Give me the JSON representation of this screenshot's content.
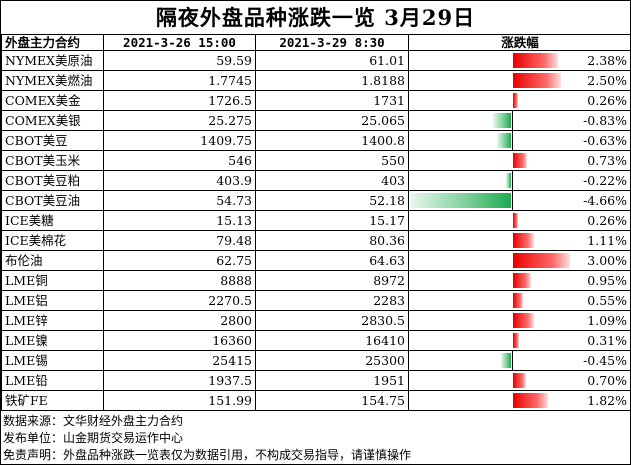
{
  "title": "隔夜外盘品种涨跌一览 3月29日",
  "columns": [
    "外盘主力合约",
    "2021-3-26 15:00",
    "2021-3-29 8:30",
    "涨跌幅"
  ],
  "colors": {
    "up": "#e80000",
    "down": "#1daa4f"
  },
  "rows": [
    {
      "name": "NYMEX美原油",
      "prev": "59.59",
      "curr": "61.01",
      "chg": "2.38%",
      "pct": 2.38
    },
    {
      "name": "NYMEX美燃油",
      "prev": "1.7745",
      "curr": "1.8188",
      "chg": "2.50%",
      "pct": 2.5
    },
    {
      "name": "COMEX美金",
      "prev": "1726.5",
      "curr": "1731",
      "chg": "0.26%",
      "pct": 0.26
    },
    {
      "name": "COMEX美银",
      "prev": "25.275",
      "curr": "25.065",
      "chg": "-0.83%",
      "pct": -0.83
    },
    {
      "name": "CBOT美豆",
      "prev": "1409.75",
      "curr": "1400.8",
      "chg": "-0.63%",
      "pct": -0.63
    },
    {
      "name": "CBOT美玉米",
      "prev": "546",
      "curr": "550",
      "chg": "0.73%",
      "pct": 0.73
    },
    {
      "name": "CBOT美豆粕",
      "prev": "403.9",
      "curr": "403",
      "chg": "-0.22%",
      "pct": -0.22
    },
    {
      "name": "CBOT美豆油",
      "prev": "54.73",
      "curr": "52.18",
      "chg": "-4.66%",
      "pct": -4.66
    },
    {
      "name": "ICE美糖",
      "prev": "15.13",
      "curr": "15.17",
      "chg": "0.26%",
      "pct": 0.26
    },
    {
      "name": "ICE美棉花",
      "prev": "79.48",
      "curr": "80.36",
      "chg": "1.11%",
      "pct": 1.11
    },
    {
      "name": "布伦油",
      "prev": "62.75",
      "curr": "64.63",
      "chg": "3.00%",
      "pct": 3.0
    },
    {
      "name": "LME铜",
      "prev": "8888",
      "curr": "8972",
      "chg": "0.95%",
      "pct": 0.95
    },
    {
      "name": "LME铝",
      "prev": "2270.5",
      "curr": "2283",
      "chg": "0.55%",
      "pct": 0.55
    },
    {
      "name": "LME锌",
      "prev": "2800",
      "curr": "2830.5",
      "chg": "1.09%",
      "pct": 1.09
    },
    {
      "name": "LME镍",
      "prev": "16360",
      "curr": "16410",
      "chg": "0.31%",
      "pct": 0.31
    },
    {
      "name": "LME锡",
      "prev": "25415",
      "curr": "25300",
      "chg": "-0.45%",
      "pct": -0.45
    },
    {
      "name": "LME铅",
      "prev": "1937.5",
      "curr": "1951",
      "chg": "0.70%",
      "pct": 0.7
    },
    {
      "name": "铁矿FE",
      "prev": "151.99",
      "curr": "154.75",
      "chg": "1.82%",
      "pct": 1.82
    }
  ],
  "footer": {
    "source": "数据来源：文华财经外盘主力合约",
    "publisher": "发布单位：山金期货交易运作中心",
    "disclaimer": "免责声明：外盘品种涨跌一览表仅为数据引用，不构成交易指导，请谨慎操作"
  }
}
